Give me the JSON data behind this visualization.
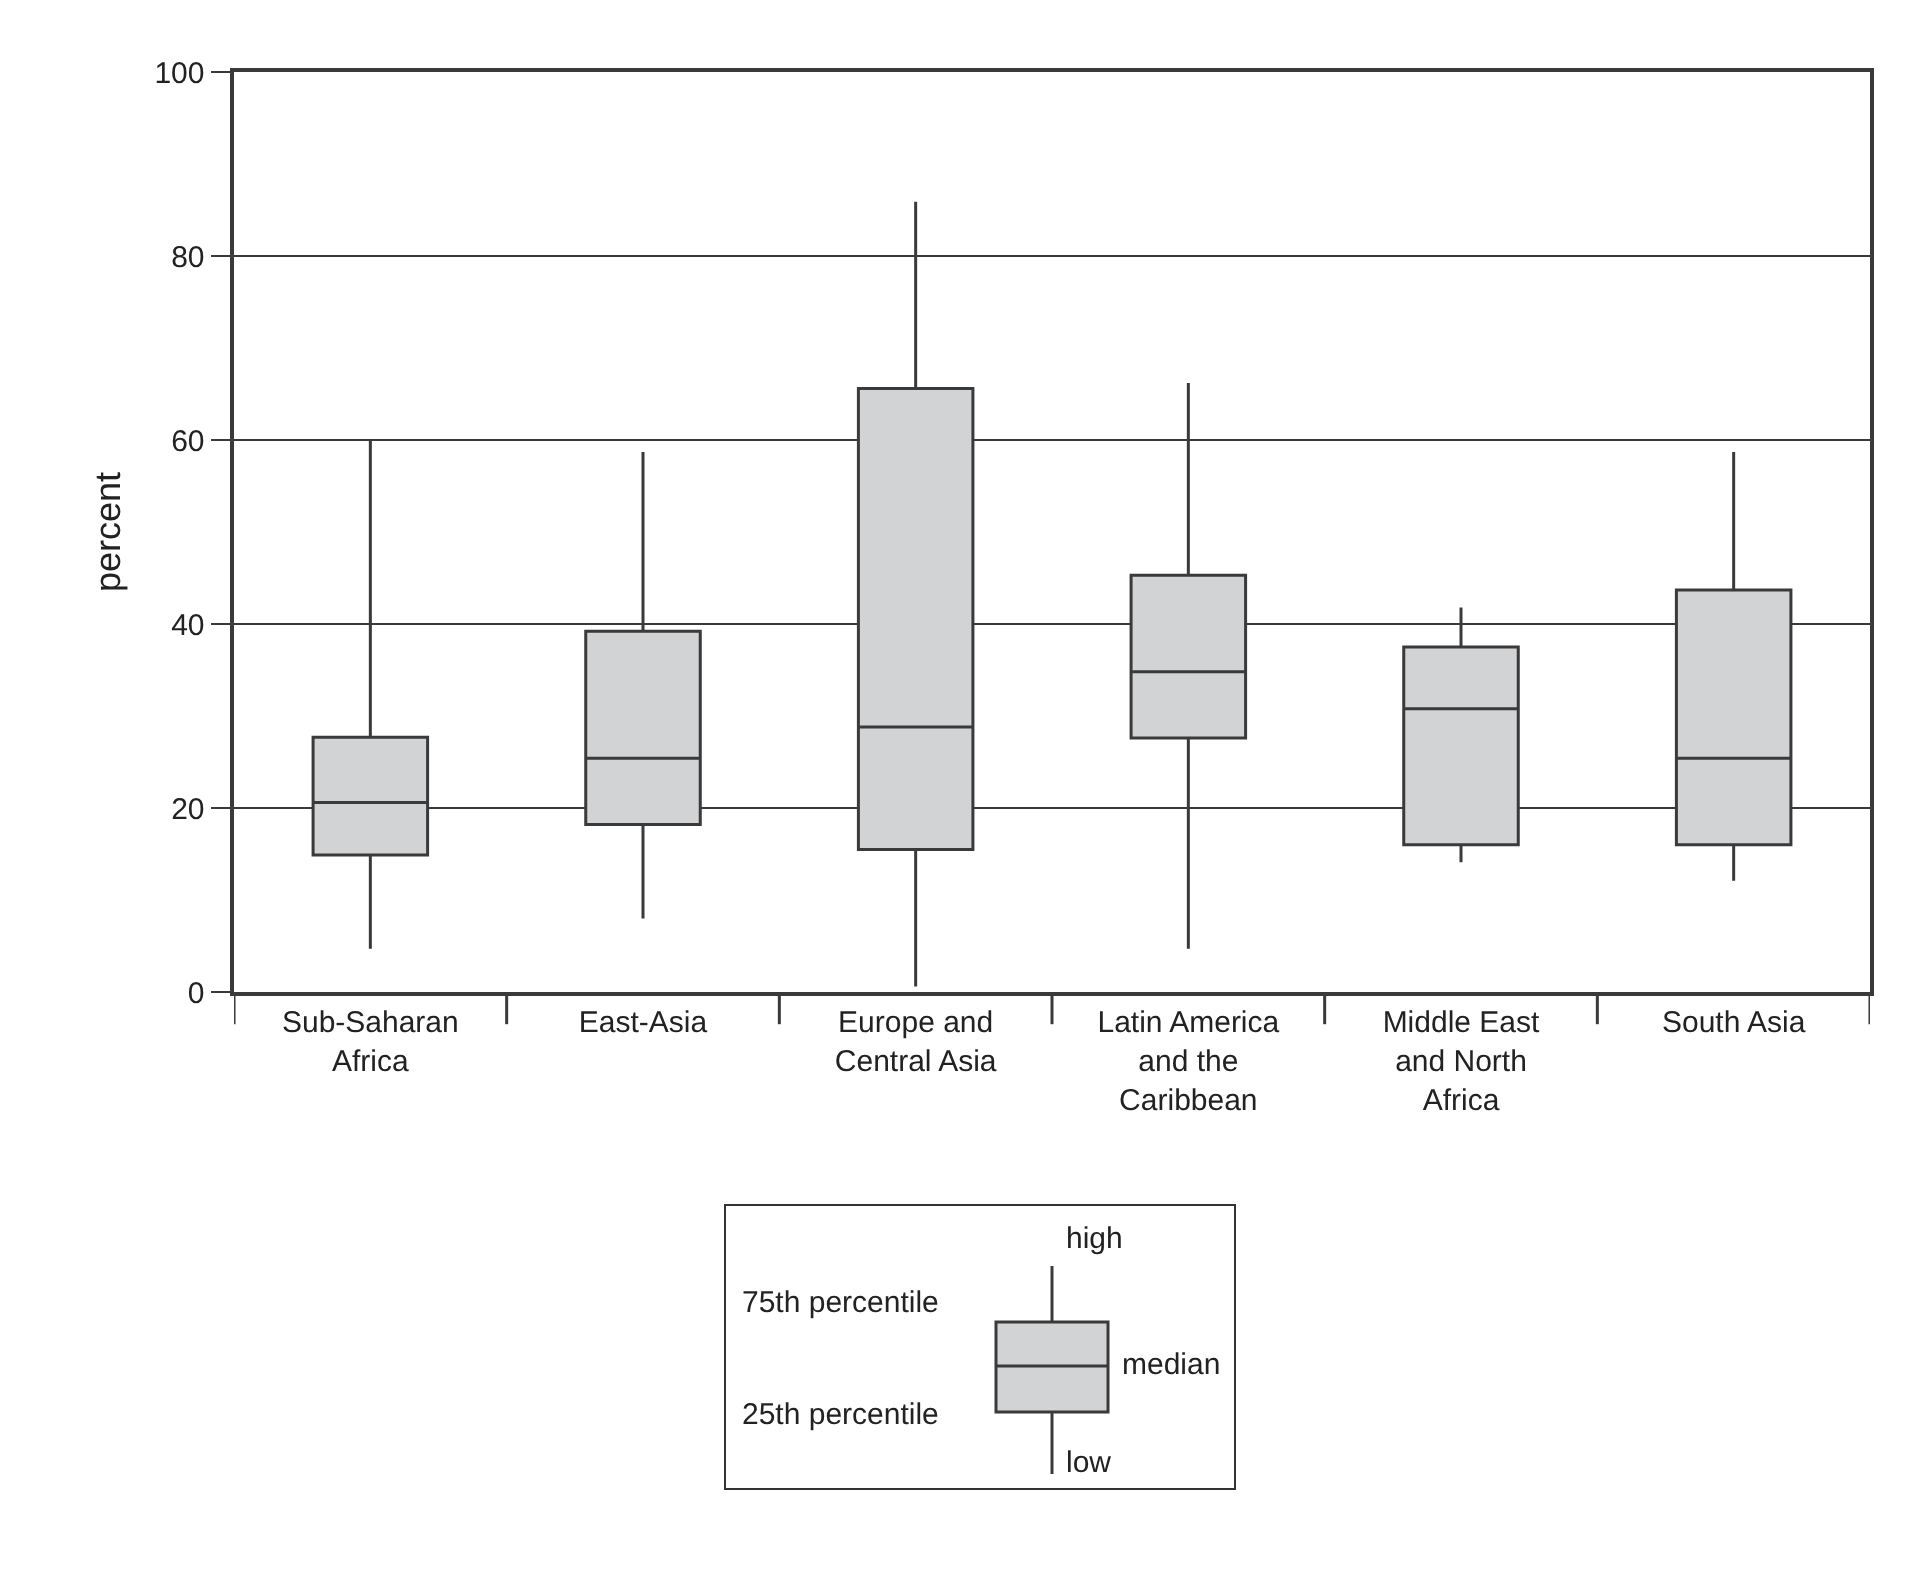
{
  "chart_data": {
    "type": "box",
    "ylabel": "percent",
    "categories": [
      "Sub-Saharan Africa",
      "East-Asia",
      "Europe and Central Asia",
      "Latin America and the Caribbean",
      "Middle East and North Africa",
      "South Asia"
    ],
    "series": [
      {
        "color": "#d1d3d4",
        "boxes": [
          {
            "low": 4.7,
            "q1": 14.9,
            "median": 20.6,
            "q3": 27.7,
            "high": 60
          },
          {
            "low": 8,
            "q1": 18.2,
            "median": 25.4,
            "q3": 39.2,
            "high": 58.7
          },
          {
            "low": 0.6,
            "q1": 15.5,
            "median": 28.8,
            "q3": 65.6,
            "high": 85.9
          },
          {
            "low": 4.7,
            "q1": 27.6,
            "median": 34.8,
            "q3": 45.3,
            "high": 66.2
          },
          {
            "low": 14.1,
            "q1": 16,
            "median": 30.8,
            "q3": 37.5,
            "high": 41.8
          },
          {
            "low": 12.1,
            "q1": 16,
            "median": 25.4,
            "q3": 43.7,
            "high": 58.7
          }
        ]
      }
    ],
    "ylim": [
      0,
      100
    ],
    "yticks": [
      0,
      20,
      40,
      60,
      80,
      100
    ],
    "grid": "y",
    "annotations": [
      "high",
      "75th percentile",
      "median",
      "25th percentile",
      "low"
    ]
  }
}
